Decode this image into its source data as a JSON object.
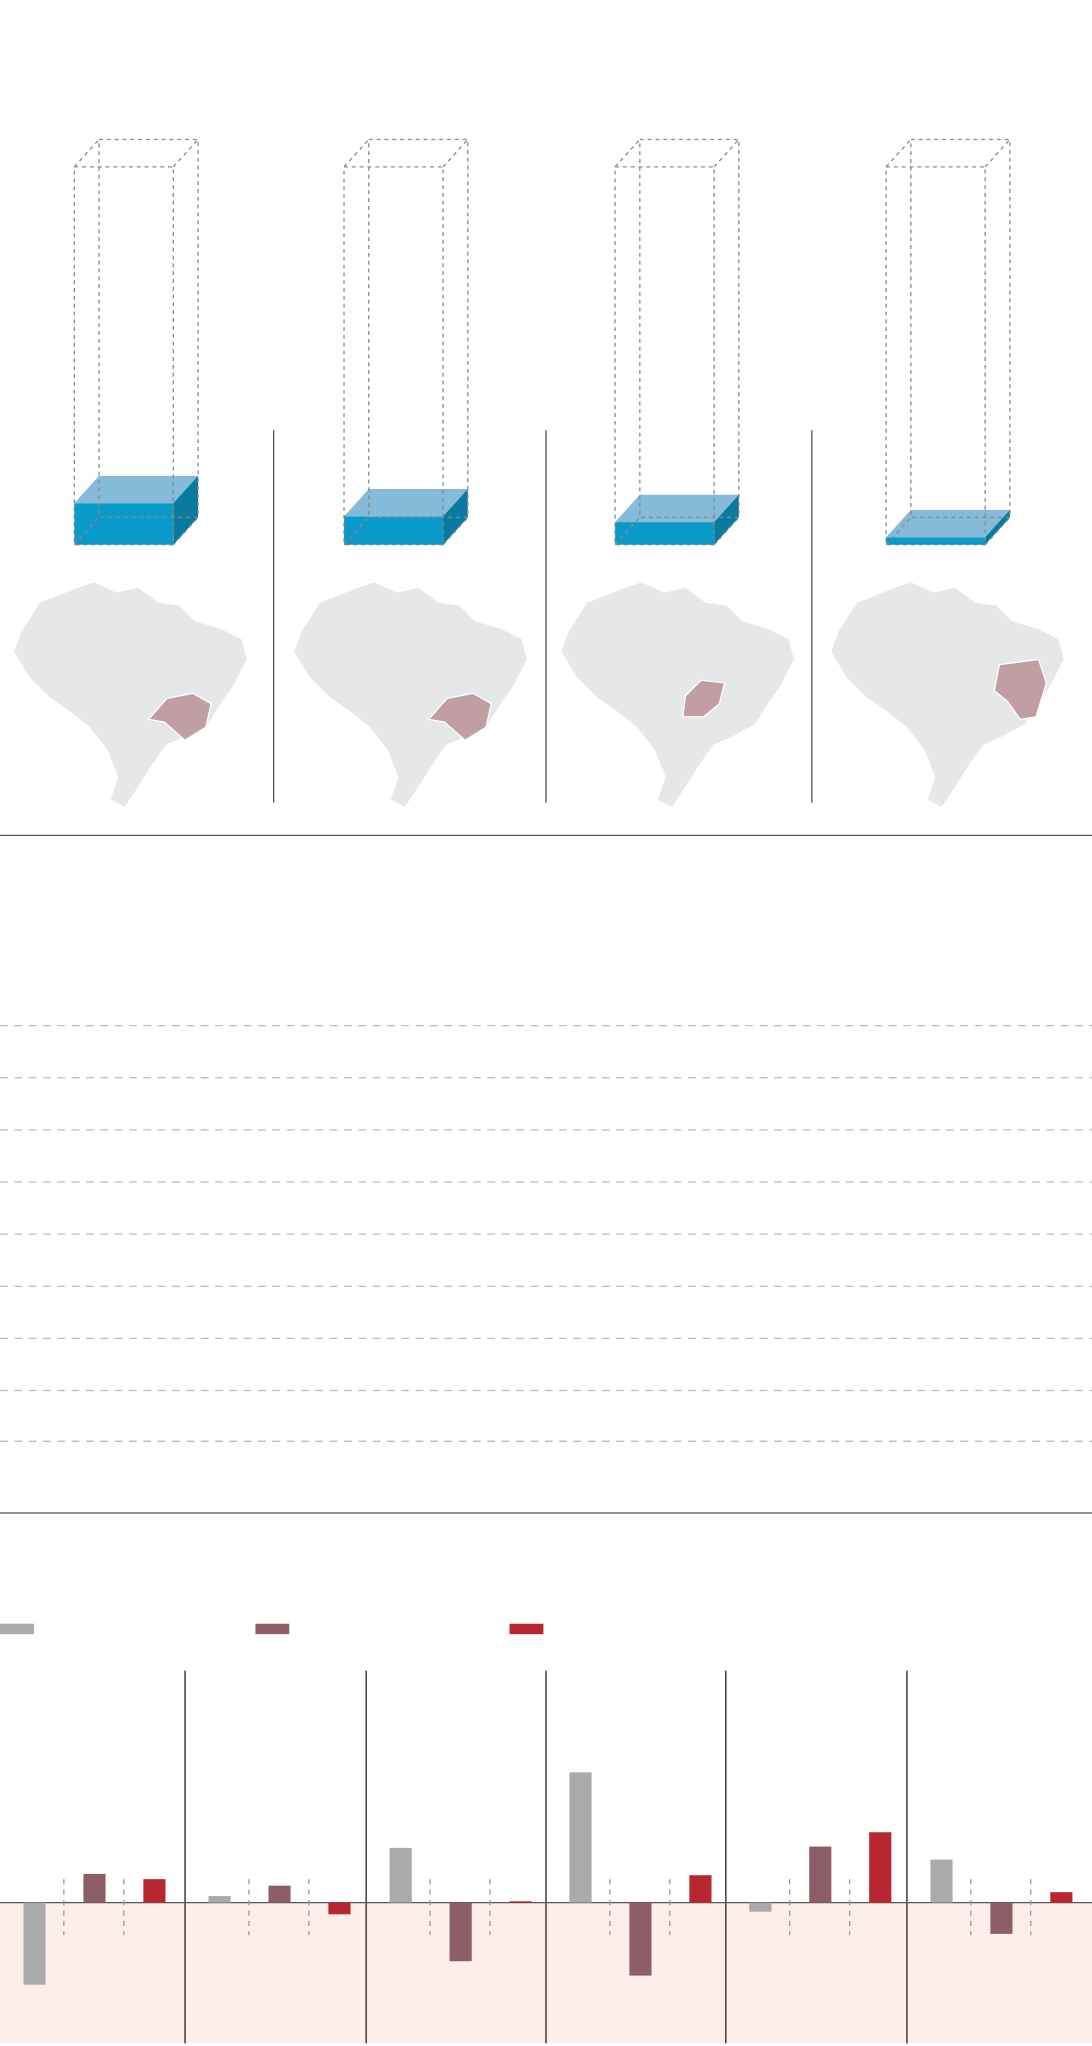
{
  "chart_data": [
    {
      "type": "box3d",
      "values": [
        11,
        7.5,
        6,
        2
      ],
      "ylim": [
        0,
        100
      ],
      "color": "#0a9ac9"
    },
    {
      "type": "panel-bars",
      "ylim": [
        -108,
        178
      ],
      "series": [
        {
          "color": "#aaaaaa",
          "values": [
            -63,
            5,
            42,
            100,
            -7,
            33
          ]
        },
        {
          "color": "#8e5e68",
          "values": [
            22,
            13,
            -45,
            -56,
            43,
            -24
          ]
        },
        {
          "color": "#b8262f",
          "values": [
            18,
            -9,
            1,
            21,
            54,
            8
          ]
        }
      ]
    }
  ]
}
